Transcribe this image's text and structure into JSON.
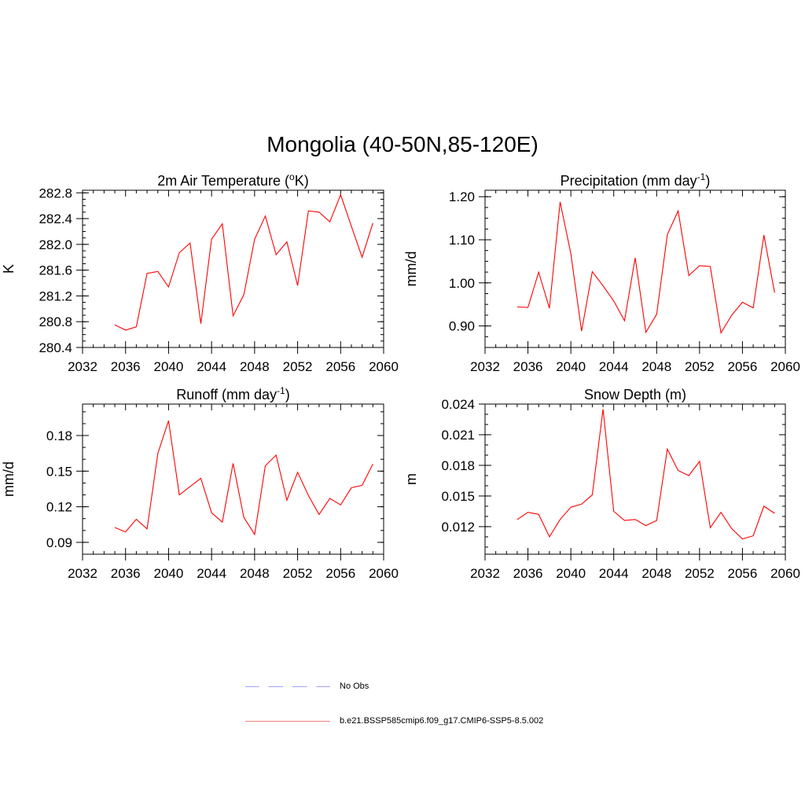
{
  "title": "Mongolia (40-50N,85-120E)",
  "legend": [
    {
      "label": "No Obs",
      "color": "#a0a0f0",
      "style": "dashed"
    },
    {
      "label": "b.e21.BSSP585cmip6.f09_g17.CMIP6-SSP5-8.5.002",
      "color": "#f08080",
      "style": "solid"
    }
  ],
  "chart_data": [
    {
      "type": "line",
      "title": "2m Air Temperature (",
      "title_sup": "o",
      "title_suffix": "K)",
      "ylabel": "K",
      "xlim": [
        2032,
        2060
      ],
      "xticks": [
        2032,
        2036,
        2040,
        2044,
        2048,
        2052,
        2056,
        2060
      ],
      "ylim": [
        280.4,
        282.84
      ],
      "yticks": [
        "280.4",
        "280.8",
        "281.2",
        "281.6",
        "282.0",
        "282.4",
        "282.8"
      ],
      "ytick_values": [
        280.4,
        280.8,
        281.2,
        281.6,
        282.0,
        282.4,
        282.8
      ],
      "ymajor": 0.4,
      "yminor": 0.1,
      "color": "#ff0000",
      "x": [
        2035,
        2036,
        2037,
        2038,
        2039,
        2040,
        2041,
        2042,
        2043,
        2044,
        2045,
        2046,
        2047,
        2048,
        2049,
        2050,
        2051,
        2052,
        2053,
        2054,
        2055,
        2056,
        2057,
        2058,
        2059
      ],
      "values": [
        280.75,
        280.67,
        280.72,
        281.55,
        281.58,
        281.34,
        281.87,
        282.02,
        280.77,
        282.08,
        282.32,
        280.89,
        281.22,
        282.08,
        282.44,
        281.84,
        282.04,
        281.36,
        282.52,
        282.5,
        282.35,
        282.77,
        282.28,
        281.8,
        282.33
      ]
    },
    {
      "type": "line",
      "title": "Precipitation (mm day",
      "title_sup": "-1",
      "title_suffix": ")",
      "ylabel": "mm/d",
      "xlim": [
        2032,
        2060
      ],
      "xticks": [
        2032,
        2036,
        2040,
        2044,
        2048,
        2052,
        2056,
        2060
      ],
      "ylim": [
        0.85,
        1.215
      ],
      "yticks": [
        "0.90",
        "1.00",
        "1.10",
        "1.20"
      ],
      "ytick_values": [
        0.9,
        1.0,
        1.1,
        1.2
      ],
      "ymajor": 0.1,
      "yminor": 0.025,
      "color": "#ff0000",
      "x": [
        2035,
        2036,
        2037,
        2038,
        2039,
        2040,
        2041,
        2042,
        2043,
        2044,
        2045,
        2046,
        2047,
        2048,
        2049,
        2050,
        2051,
        2052,
        2053,
        2054,
        2055,
        2056,
        2057,
        2058,
        2059
      ],
      "values": [
        0.944,
        0.943,
        1.025,
        0.941,
        1.188,
        1.068,
        0.888,
        1.026,
        0.993,
        0.958,
        0.912,
        1.058,
        0.885,
        0.927,
        1.112,
        1.167,
        1.017,
        1.04,
        1.038,
        0.884,
        0.925,
        0.955,
        0.942,
        1.111,
        0.977
      ]
    },
    {
      "type": "line",
      "title": "Runoff (mm day",
      "title_sup": "-1",
      "title_suffix": ")",
      "ylabel": "mm/d",
      "xlim": [
        2032,
        2060
      ],
      "xticks": [
        2032,
        2036,
        2040,
        2044,
        2048,
        2052,
        2056,
        2060
      ],
      "ylim": [
        0.08,
        0.2065
      ],
      "yticks": [
        "0.09",
        "0.12",
        "0.15",
        "0.18"
      ],
      "ytick_values": [
        0.09,
        0.12,
        0.15,
        0.18
      ],
      "ymajor": 0.03,
      "yminor": 0.01,
      "color": "#ff0000",
      "x": [
        2035,
        2036,
        2037,
        2038,
        2039,
        2040,
        2041,
        2042,
        2043,
        2044,
        2045,
        2046,
        2047,
        2048,
        2049,
        2050,
        2051,
        2052,
        2053,
        2054,
        2055,
        2056,
        2057,
        2058,
        2059
      ],
      "values": [
        0.1025,
        0.0988,
        0.1095,
        0.1013,
        0.165,
        0.1925,
        0.13,
        0.137,
        0.144,
        0.115,
        0.107,
        0.1565,
        0.111,
        0.0967,
        0.1545,
        0.1635,
        0.1255,
        0.149,
        0.1295,
        0.1135,
        0.127,
        0.1215,
        0.136,
        0.138,
        0.156
      ]
    },
    {
      "type": "line",
      "title": "Snow Depth (m)",
      "title_sup": "",
      "title_suffix": "",
      "ylabel": "m",
      "xlim": [
        2032,
        2060
      ],
      "xticks": [
        2032,
        2036,
        2040,
        2044,
        2048,
        2052,
        2056,
        2060
      ],
      "ylim": [
        0.0093,
        0.024
      ],
      "yticks": [
        "0.012",
        "0.015",
        "0.018",
        "0.021",
        "0.024"
      ],
      "ytick_values": [
        0.012,
        0.015,
        0.018,
        0.021,
        0.024
      ],
      "ymajor": 0.003,
      "yminor": 0.001,
      "color": "#ff0000",
      "x": [
        2035,
        2036,
        2037,
        2038,
        2039,
        2040,
        2041,
        2042,
        2043,
        2044,
        2045,
        2046,
        2047,
        2048,
        2049,
        2050,
        2051,
        2052,
        2053,
        2054,
        2055,
        2056,
        2057,
        2058,
        2059
      ],
      "values": [
        0.0127,
        0.0134,
        0.0132,
        0.011,
        0.0127,
        0.0139,
        0.0142,
        0.0151,
        0.0235,
        0.0135,
        0.0126,
        0.0127,
        0.0121,
        0.0126,
        0.0196,
        0.0175,
        0.017,
        0.0184,
        0.0119,
        0.0134,
        0.0118,
        0.0108,
        0.0111,
        0.014,
        0.0133
      ]
    }
  ]
}
